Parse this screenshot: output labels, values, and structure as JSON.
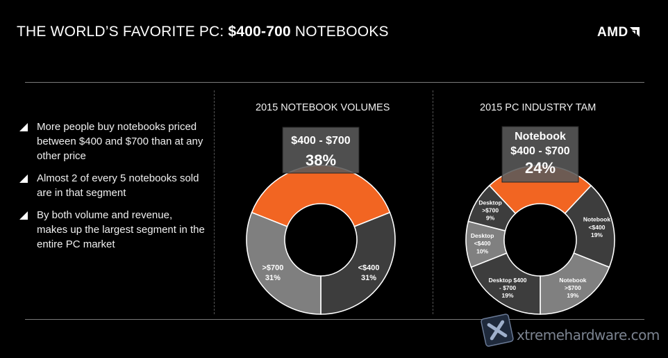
{
  "header": {
    "title_prefix": "THE WORLD’S FAVORITE PC: ",
    "title_bold": "$400-700",
    "title_suffix": " NOTEBOOKS",
    "logo": "AMD"
  },
  "bullets": [
    "More people buy notebooks priced between $400 and $700 than at any other price",
    "Almost 2 of every 5 notebooks sold are in that segment",
    "By both volume and revenue, makes up the largest segment in the entire PC market"
  ],
  "watermark": "xtremehardware.com",
  "colors": {
    "highlight": "#f26522",
    "grey_light": "#808080",
    "grey_mid": "#636363",
    "grey_dark": "#3d3d3d",
    "callout_bg": "#5a5a5a"
  },
  "chart_data": [
    {
      "type": "pie",
      "donut": true,
      "title": "2015 NOTEBOOK VOLUMES",
      "callout": {
        "label": "$400 - $700",
        "value": "38%"
      },
      "slices": [
        {
          "label": "$400 - $700",
          "value": 38,
          "color": "#f26522",
          "highlight": true
        },
        {
          "label": "<$400",
          "value": 31,
          "color": "#3d3d3d",
          "text": [
            "<$400",
            "31%"
          ]
        },
        {
          "label": ">$700",
          "value": 31,
          "color": "#7f7f7f",
          "text": [
            ">$700",
            "31%"
          ]
        }
      ]
    },
    {
      "type": "pie",
      "donut": true,
      "title": "2015 PC INDUSTRY TAM",
      "callout": {
        "label": "Notebook",
        "label2": "$400 - $700",
        "value": "24%"
      },
      "slices": [
        {
          "label": "Notebook $400 - $700",
          "value": 24,
          "color": "#f26522",
          "highlight": true
        },
        {
          "label": "Notebook <$400",
          "value": 19,
          "color": "#3d3d3d",
          "text": [
            "Notebook",
            "<$400",
            "19%"
          ]
        },
        {
          "label": "Notebook >$700",
          "value": 19,
          "color": "#808080",
          "text": [
            "Notebook",
            ">$700",
            "19%"
          ]
        },
        {
          "label": "Desktop $400 - $700",
          "value": 19,
          "color": "#3d3d3d",
          "text": [
            "Desktop $400",
            "- $700",
            "19%"
          ]
        },
        {
          "label": "Desktop <$400",
          "value": 10,
          "color": "#808080",
          "text": [
            "Desktop",
            "<$400",
            "10%"
          ]
        },
        {
          "label": "Desktop >$700",
          "value": 9,
          "color": "#3d3d3d",
          "text": [
            "Desktop",
            ">$700",
            "9%"
          ]
        }
      ]
    }
  ]
}
